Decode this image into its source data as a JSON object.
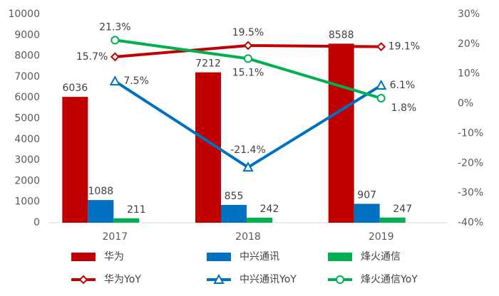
{
  "chart_data": {
    "type": "bar",
    "categories": [
      "2017",
      "2018",
      "2019"
    ],
    "ylim": [
      0,
      10000
    ],
    "yticks": [
      0,
      1000,
      2000,
      3000,
      4000,
      5000,
      6000,
      7000,
      8000,
      9000,
      10000
    ],
    "y2lim": [
      -40,
      30
    ],
    "y2ticks": [
      {
        "value": -40,
        "label": "-40%"
      },
      {
        "value": -30,
        "label": "-30%"
      },
      {
        "value": -20,
        "label": "-20%"
      },
      {
        "value": -10,
        "label": "-10%"
      },
      {
        "value": 0,
        "label": "0%"
      },
      {
        "value": 10,
        "label": "10%"
      },
      {
        "value": 20,
        "label": "20%"
      },
      {
        "value": 30,
        "label": "30%"
      }
    ],
    "grid": false,
    "series": [
      {
        "name": "华为",
        "type": "bar",
        "color": "#c00000",
        "values": [
          6036,
          7212,
          8588
        ]
      },
      {
        "name": "中兴通讯",
        "type": "bar",
        "color": "#0070c0",
        "values": [
          1088,
          855,
          907
        ]
      },
      {
        "name": "烽火通信",
        "type": "bar",
        "color": "#00b050",
        "values": [
          211,
          242,
          247
        ]
      },
      {
        "name": "华为YoY",
        "type": "line",
        "axis": "y2",
        "marker": "diamond",
        "color": "#c00000",
        "values": [
          15.7,
          19.5,
          19.1
        ],
        "value_labels": [
          "15.7%",
          "19.5%",
          "19.1%"
        ]
      },
      {
        "name": "中兴通讯YoY",
        "type": "line",
        "axis": "y2",
        "marker": "triangle",
        "color": "#0070c0",
        "values": [
          7.5,
          -21.4,
          6.1
        ],
        "value_labels": [
          "7.5%",
          "-21.4%",
          "6.1%"
        ]
      },
      {
        "name": "烽火通信YoY",
        "type": "line",
        "axis": "y2",
        "marker": "circle",
        "color": "#00b050",
        "values": [
          21.3,
          15.1,
          1.8
        ],
        "value_labels": [
          "21.3%",
          "15.1%",
          "1.8%"
        ]
      }
    ]
  }
}
